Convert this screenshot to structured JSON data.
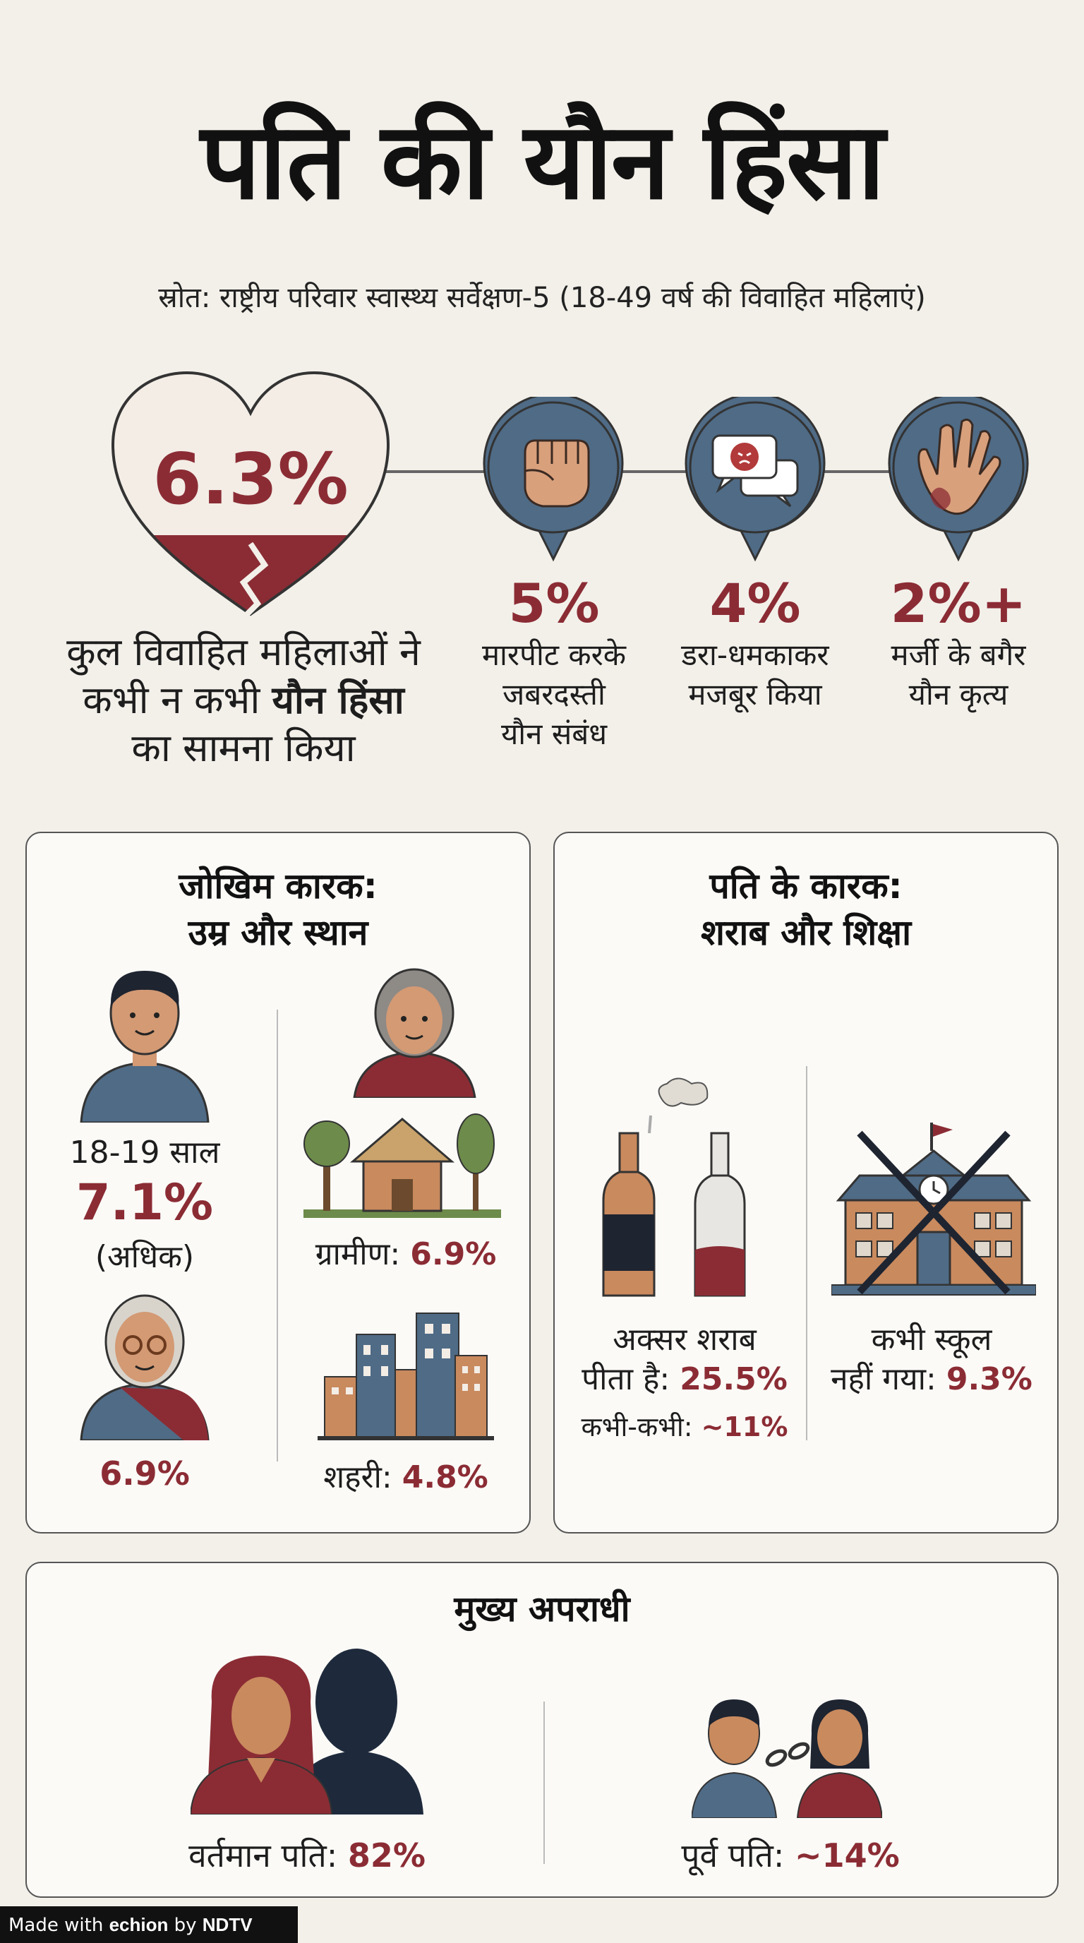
{
  "title": "पति की यौन हिंसा",
  "source": "स्रोत: राष्ट्रीय परिवार स्वास्थ्य सर्वेक्षण-5 (18-49 वर्ष की विवाहित महिलाएं)",
  "headline": {
    "percent": "6.3%",
    "desc_line1": "कुल विवाहित महिलाओं ने",
    "desc_line2_pre": "कभी न कभी ",
    "desc_line2_bold": "यौन हिंसा",
    "desc_line3": "का सामना किया"
  },
  "stats": [
    {
      "icon": "fist-icon",
      "percent": "5%",
      "line1": "मारपीट करके",
      "line2": "जबरदस्ती",
      "line3": "यौन संबंध"
    },
    {
      "icon": "threat-chat-icon",
      "percent": "4%",
      "line1": "डरा-धमकाकर",
      "line2": "मजबूर किया",
      "line3": ""
    },
    {
      "icon": "hand-icon",
      "percent": "2%+",
      "line1": "मर्जी के बगैर",
      "line2": "यौन कृत्य",
      "line3": ""
    }
  ],
  "risk_card": {
    "title_line1": "जोखिम कारक:",
    "title_line2": "उम्र और स्थान",
    "young_label": "18-19 साल",
    "young_value": "7.1%",
    "young_note": "(अधिक)",
    "old_value": "6.9%",
    "rural_label": "ग्रामीण:",
    "rural_value": "6.9%",
    "urban_label": "शहरी:",
    "urban_value": "4.8%"
  },
  "husband_card": {
    "title_line1": "पति के कारक:",
    "title_line2": "शराब और शिक्षा",
    "alcohol_line1": "अक्सर शराब",
    "alcohol_label": "पीता है:",
    "alcohol_value": "25.5%",
    "sometimes_label": "कभी-कभी:",
    "sometimes_value": "~11%",
    "school_line1": "कभी स्कूल",
    "school_label": "नहीं गया:",
    "school_value": "9.3%"
  },
  "perpetrator_card": {
    "title": "मुख्य अपराधी",
    "current_label": "वर्तमान पति:",
    "current_value": "82%",
    "former_label": "पूर्व पति:",
    "former_value": "~14%"
  },
  "footer": {
    "made_with": "Made with ",
    "brand1": "echion",
    "by": " by ",
    "brand2": "NDTV"
  },
  "colors": {
    "accent_red": "#8b2c34",
    "slate_blue": "#4f6b86",
    "background": "#f3f0ea"
  }
}
